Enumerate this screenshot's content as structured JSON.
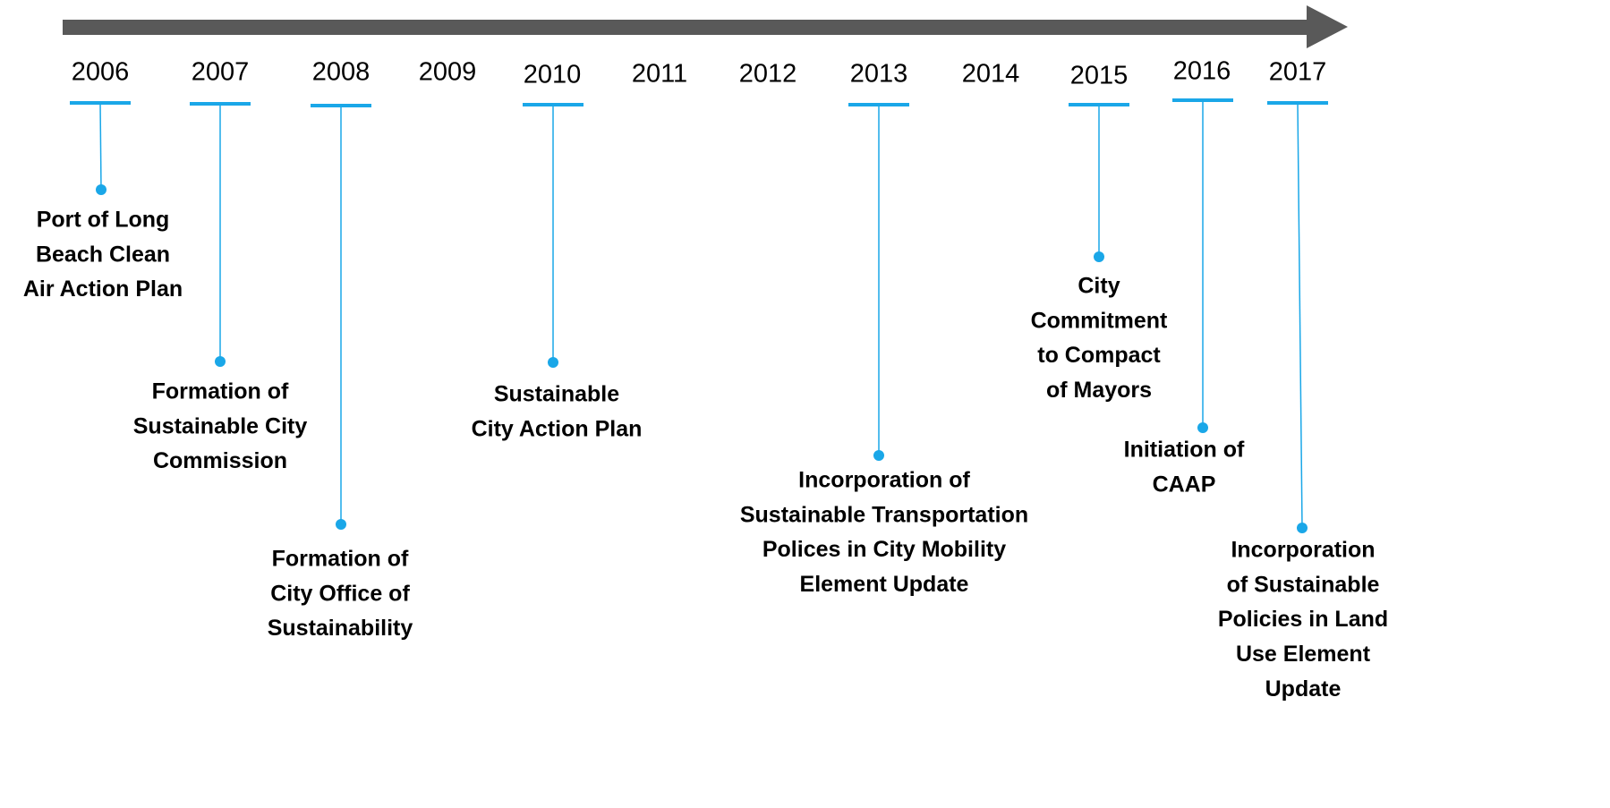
{
  "timeline": {
    "years": [
      "2006",
      "2007",
      "2008",
      "2009",
      "2010",
      "2011",
      "2012",
      "2013",
      "2014",
      "2015",
      "2016",
      "2017"
    ],
    "events": [
      {
        "lines": [
          "Port of Long",
          "Beach Clean",
          "Air Action Plan"
        ]
      },
      {
        "lines": [
          "Formation of",
          "Sustainable City",
          "Commission"
        ]
      },
      {
        "lines": [
          "Formation of",
          "City Office of",
          "Sustainability"
        ]
      },
      {
        "lines": [
          "Sustainable",
          "City Action Plan"
        ]
      },
      {
        "lines": [
          "Incorporation of",
          "Sustainable Transportation",
          "Polices in City Mobility",
          "Element Update"
        ]
      },
      {
        "lines": [
          "City",
          "Commitment",
          "to Compact",
          "of Mayors"
        ]
      },
      {
        "lines": [
          "Initiation of",
          "CAAP"
        ]
      },
      {
        "lines": [
          "Incorporation",
          "of Sustainable",
          "Policies in Land",
          "Use Element",
          "Update"
        ]
      }
    ]
  }
}
